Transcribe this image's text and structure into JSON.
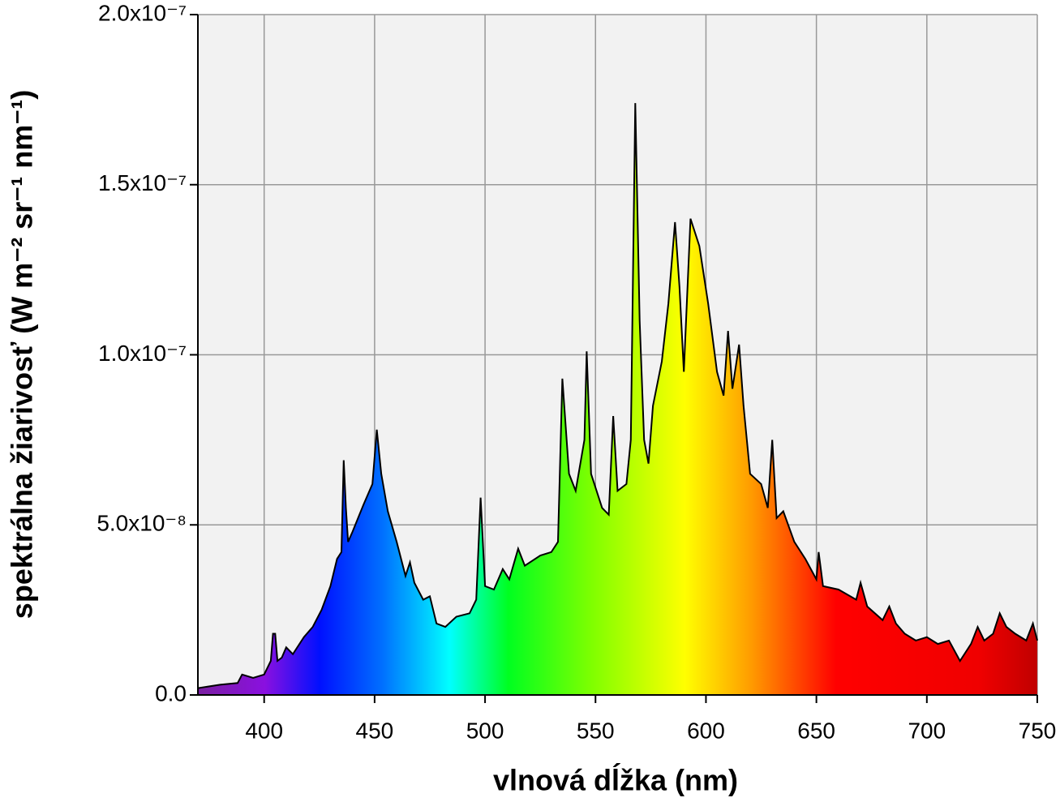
{
  "chart_data": {
    "type": "area",
    "xlabel": "vlnová dĺžka (nm)",
    "ylabel": "spektrálna žiarivosť (W m⁻² sr⁻¹ nm⁻¹)",
    "x": [
      370,
      380,
      388,
      390,
      395,
      400,
      403,
      404,
      405,
      406,
      408,
      410,
      413,
      418,
      422,
      426,
      430,
      433,
      435,
      436,
      437,
      438,
      440,
      445,
      449,
      451,
      453,
      456,
      460,
      464,
      466,
      468,
      472,
      475,
      478,
      482,
      487,
      493,
      496,
      498,
      500,
      504,
      508,
      511,
      515,
      518,
      525,
      530,
      533,
      535,
      538,
      541,
      545,
      546,
      548,
      553,
      556,
      558,
      560,
      564,
      566,
      568,
      570,
      572,
      574,
      576,
      580,
      583,
      586,
      588,
      590,
      593,
      597,
      601,
      605,
      608,
      610,
      612,
      615,
      617,
      620,
      625,
      628,
      630,
      632,
      635,
      640,
      645,
      650,
      651,
      653,
      660,
      668,
      670,
      673,
      680,
      683,
      686,
      690,
      695,
      700,
      705,
      710,
      715,
      720,
      723,
      726,
      730,
      733,
      736,
      740,
      745,
      748,
      750
    ],
    "values": [
      2e-09,
      3e-09,
      3.5e-09,
      6e-09,
      5e-09,
      6e-09,
      1e-08,
      1.8e-08,
      1.8e-08,
      1e-08,
      1.1e-08,
      1.4e-08,
      1.2e-08,
      1.7e-08,
      2e-08,
      2.5e-08,
      3.2e-08,
      4e-08,
      4.2e-08,
      6.9e-08,
      5.5e-08,
      4.5e-08,
      4.8e-08,
      5.6e-08,
      6.2e-08,
      7.8e-08,
      6.5e-08,
      5.4e-08,
      4.5e-08,
      3.5e-08,
      3.9e-08,
      3.3e-08,
      2.8e-08,
      2.9e-08,
      2.1e-08,
      2e-08,
      2.3e-08,
      2.4e-08,
      2.8e-08,
      5.8e-08,
      3.2e-08,
      3.1e-08,
      3.7e-08,
      3.4e-08,
      4.3e-08,
      3.8e-08,
      4.1e-08,
      4.2e-08,
      4.5e-08,
      9.3e-08,
      6.5e-08,
      6e-08,
      7.5e-08,
      1.01e-07,
      6.5e-08,
      5.5e-08,
      5.3e-08,
      8.2e-08,
      6e-08,
      6.2e-08,
      7.5e-08,
      1.74e-07,
      1.1e-07,
      7.5e-08,
      6.8e-08,
      8.5e-08,
      9.8e-08,
      1.15e-07,
      1.39e-07,
      1.2e-07,
      9.5e-08,
      1.4e-07,
      1.32e-07,
      1.15e-07,
      9.5e-08,
      8.8e-08,
      1.07e-07,
      9e-08,
      1.03e-07,
      8.5e-08,
      6.5e-08,
      6.2e-08,
      5.5e-08,
      7.5e-08,
      5.2e-08,
      5.4e-08,
      4.5e-08,
      4e-08,
      3.4e-08,
      4.2e-08,
      3.2e-08,
      3.1e-08,
      2.8e-08,
      3.3e-08,
      2.6e-08,
      2.2e-08,
      2.6e-08,
      2.1e-08,
      1.8e-08,
      1.6e-08,
      1.7e-08,
      1.5e-08,
      1.6e-08,
      1e-08,
      1.5e-08,
      2e-08,
      1.6e-08,
      1.8e-08,
      2.4e-08,
      2e-08,
      1.8e-08,
      1.6e-08,
      2.1e-08,
      1.6e-08
    ],
    "line_color": "#000000",
    "xlim": [
      370,
      750
    ],
    "xticks": [
      400,
      450,
      500,
      550,
      600,
      650,
      700,
      750
    ],
    "ylim": [
      0,
      2e-07
    ],
    "yticks": [
      {
        "value": 0,
        "label": "0.0"
      },
      {
        "value": 5e-08,
        "label": "5.0x10⁻⁸"
      },
      {
        "value": 1e-07,
        "label": "1.0x10⁻⁷"
      },
      {
        "value": 1.5e-07,
        "label": "1.5x10⁻⁷"
      },
      {
        "value": 2e-07,
        "label": "2.0x10⁻⁷"
      }
    ],
    "grid": true
  }
}
